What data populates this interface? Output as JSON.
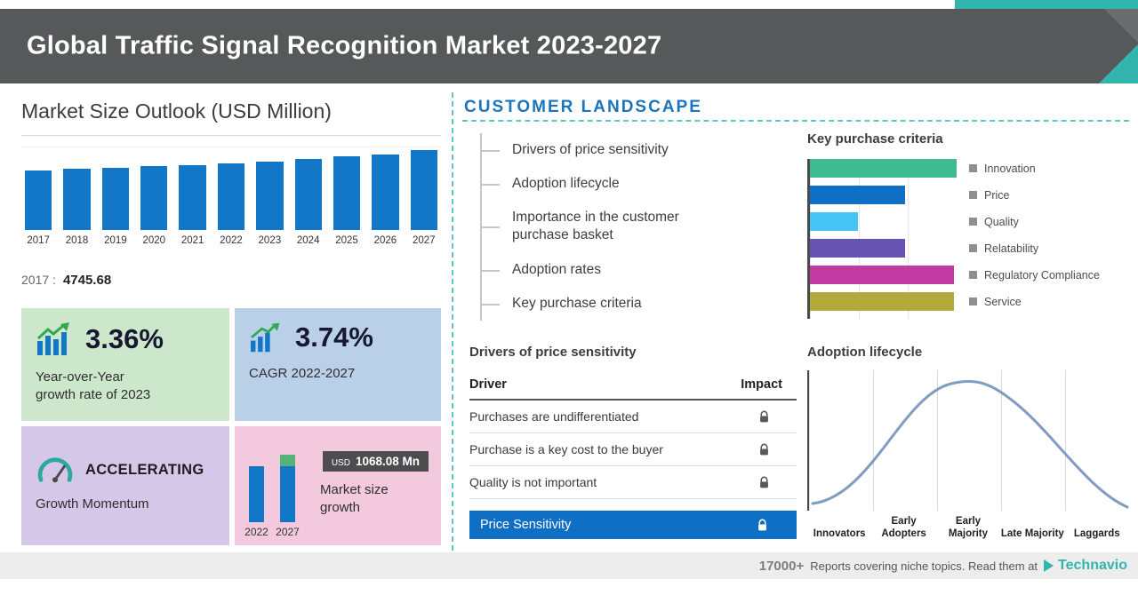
{
  "colors": {
    "teal": "#31b5ae",
    "header_bg": "#57585a",
    "bar_blue": "#1377c8",
    "highlight_blue": "#0f6fc5"
  },
  "header": {
    "title": "Global Traffic Signal Recognition Market 2023-2027"
  },
  "market_size": {
    "title": "Market Size Outlook (USD Million)",
    "base_label": "2017 :",
    "base_value": "4745.68"
  },
  "cards": {
    "yoy": {
      "value": "3.36%",
      "line1": "Year-over-Year",
      "line2": "growth rate of 2023"
    },
    "cagr": {
      "value": "3.74%",
      "label": "CAGR 2022-2027"
    },
    "momentum": {
      "value": "ACCELERATING",
      "label": "Growth Momentum"
    },
    "growth": {
      "currency": "USD",
      "value": "1068.08 Mn",
      "label": "Market size growth"
    }
  },
  "customer_landscape": {
    "title": "CUSTOMER LANDSCAPE",
    "items": [
      "Drivers of price sensitivity",
      "Adoption lifecycle",
      "Importance in the customer purchase basket",
      "Adoption rates",
      "Key purchase criteria"
    ]
  },
  "price_sensitivity": {
    "title": "Drivers of price sensitivity",
    "columns": [
      "Driver",
      "Impact"
    ],
    "rows": [
      "Purchases are undifferentiated",
      "Purchase is a key cost to the buyer",
      "Quality is not important"
    ],
    "highlight": "Price Sensitivity"
  },
  "footer": {
    "count": "17000+",
    "text": "Reports covering niche topics. Read them at",
    "brand": "Technavio"
  },
  "chart_data": [
    {
      "type": "bar",
      "title": "Market Size Outlook (USD Million)",
      "categories": [
        "2017",
        "2018",
        "2019",
        "2020",
        "2021",
        "2022",
        "2023",
        "2024",
        "2025",
        "2026",
        "2027"
      ],
      "values": [
        4745.68,
        4850,
        4957,
        5066,
        5178,
        5294.9,
        5472.8,
        5657.5,
        5846.9,
        6043.5,
        6362.98
      ],
      "ylabel": "USD Million",
      "bar_color": "#1377c8",
      "note": "Only 2017 value labeled (4745.68); remaining values estimated from bar heights and stated YoY 3.36% (2023), CAGR 3.74% and USD 1068.08 Mn growth (2022-2027)"
    },
    {
      "type": "bar",
      "title": "Market size growth",
      "categories": [
        "2022",
        "2027"
      ],
      "values": [
        5294.9,
        6362.98
      ],
      "growth_label": "USD 1068.08 Mn"
    },
    {
      "type": "bar",
      "orientation": "horizontal",
      "title": "Key purchase criteria",
      "categories": [
        "Innovation",
        "Price",
        "Quality",
        "Relatability",
        "Regulatory Compliance",
        "Service"
      ],
      "values": [
        100,
        65,
        33,
        65,
        98,
        98
      ],
      "value_unit": "relative-percent-estimated",
      "colors": [
        "#3dbd8f",
        "#0f6fc5",
        "#45c5f4",
        "#6552b1",
        "#c23ba3",
        "#b3aa3d"
      ],
      "legend_position": "right"
    },
    {
      "type": "area",
      "title": "Adoption lifecycle",
      "shape": "bell-curve",
      "stages": [
        "Innovators",
        "Early Adopters",
        "Early Majority",
        "Late Majority",
        "Laggards"
      ]
    }
  ]
}
